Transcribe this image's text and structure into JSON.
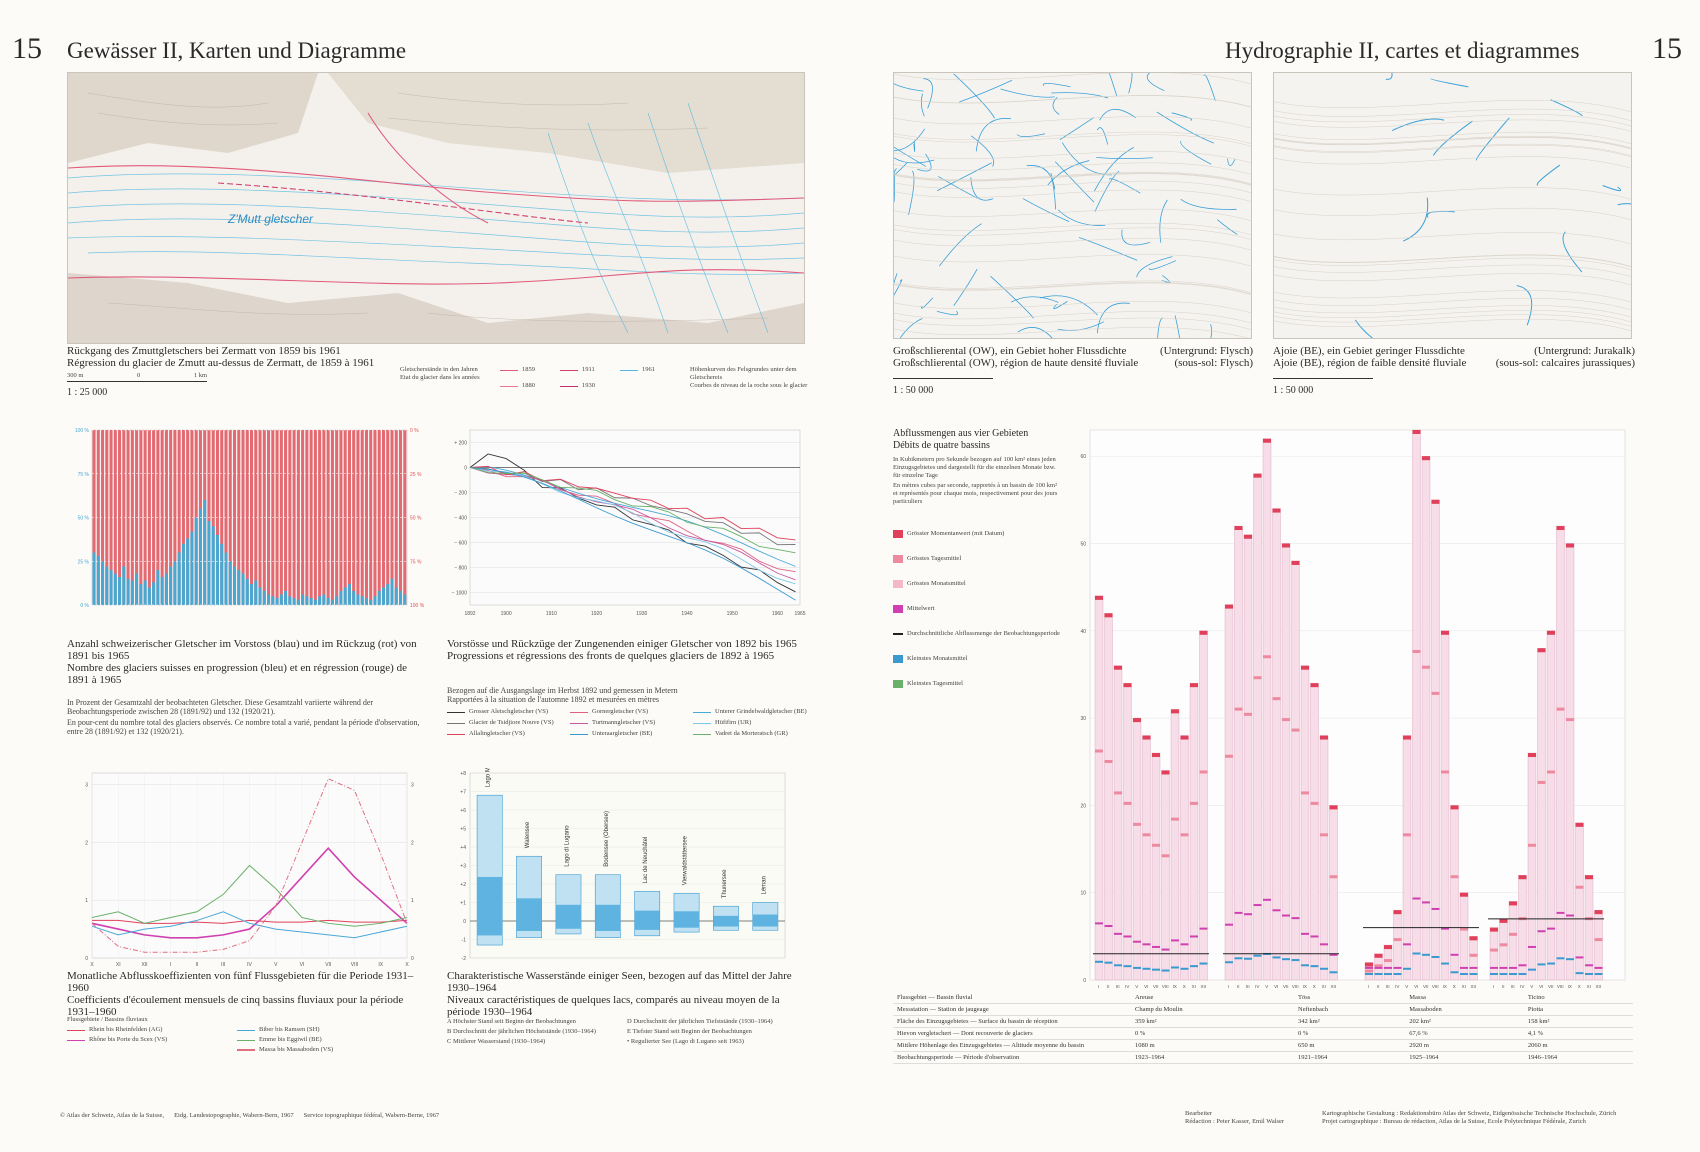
{
  "left": {
    "page_number": "15",
    "title": "Gewässer II, Karten und Diagramme",
    "zmutt": {
      "cap_de": "Rückgang des Zmuttgletschers bei Zermatt von 1859 bis 1961",
      "cap_fr": "Régression du glacier de Zmutt au-dessus de Zermatt, de 1859 à 1961",
      "scale": "1 : 25 000",
      "bar_labels": [
        "300 m",
        "0",
        "1 km"
      ],
      "map_label": "Z'Mutt gletscher",
      "legend_head_de": "Gletscherstände in den Jahren",
      "legend_head_fr": "Etat du glacier dans les années",
      "years": [
        "1859",
        "1911",
        "1961",
        "1880",
        "1930"
      ],
      "contour_de": "Höhenkurven des Felsgrundes unter dem Gletschereis",
      "contour_fr": "Courbes de niveau de la roche sous le glacier"
    },
    "glaciers_count": {
      "cap_de": "Anzahl schweizerischer Gletscher im Vorstoss (blau) und im Rückzug (rot) von 1891 bis 1965",
      "cap_fr": "Nombre des glaciers suisses en progression (bleu) et en régression (rouge) de 1891 à 1965",
      "note_de": "In Prozent der Gesamtzahl der beobachteten Gletscher. Diese Gesamtzahl variierte während der Beobachtungsperiode zwischen 28 (1891/92) und 132 (1920/21).",
      "note_fr": "En pour-cent du nombre total des glaciers observés. Ce nombre total a varié, pendant la période d'observation, entre 28 (1891/92) et 132 (1920/21)."
    },
    "fronts": {
      "cap_de": "Vorstösse und Rückzüge der Zungenenden einiger Gletscher von 1892 bis 1965",
      "cap_fr": "Progressions et régressions des fronts de quelques glaciers de 1892 à 1965",
      "note_de": "Bezogen auf die Ausgangslage im Herbst 1892 und gemessen in Metern",
      "note_fr": "Rapportées à la situation de l'automne 1892 et mesurées en mètres",
      "legend": [
        "Grosser Aletschgletscher (VS)",
        "Gornergletscher (VS)",
        "Unterer Grindelwaldgletscher (BE)",
        "Glacier de Tsidjiore Nouve (VS)",
        "Turtmanngletscher (VS)",
        "Hüfifirn (UR)",
        "Allalingletscher (VS)",
        "Unteraargletscher (BE)",
        "Vadret da Morteratsch (GR)"
      ]
    },
    "monthly": {
      "cap_de": "Monatliche Abflusskoeffizienten von fünf Flussgebieten für die Periode 1931–1960",
      "cap_fr": "Coefficients d'écoulement mensuels de cinq bassins fluviaux pour la période 1931–1960",
      "legend_head": "Flussgebiete / Bassins fluviaux",
      "legend": [
        "Rhein bis Rheinfelden (AG)",
        "Rhône bis Porte du Scex (VS)",
        "Biber bis Ramsen (SH)",
        "Emme bis Eggiwil (BE)",
        "Massa bis Massaboden (VS)"
      ]
    },
    "lakes": {
      "cap_de": "Charakteristische Wasserstände einiger Seen, bezogen auf das Mittel der Jahre 1930–1964",
      "cap_fr": "Niveaux caractéristiques de quelques lacs, comparés au niveau moyen de la période 1930–1964",
      "lakes": [
        "Lago Maggiore",
        "Walensee",
        "Lago di Lugano",
        "Bodensee (Obersee)",
        "Lac de Neuchâtel",
        "Vierwaldstättersee",
        "Thunersee",
        "Léman"
      ],
      "notes": [
        "A Höchster Stand seit Beginn der Beobachtungen",
        "B Durchschnitt der jährlichen Höchststände (1930–1964)",
        "C Mittlerer Wasserstand (1930–1964)",
        "D Durchschnitt der jährlichen Tiefststände (1930–1964)",
        "E Tiefster Stand seit Beginn der Beobachtungen",
        "• Regulierter See (Lago di Lugano seit 1963)"
      ]
    },
    "footer": [
      "© Atlas der Schweiz, Atlas de la Suisse,",
      "Eidg. Landestopographie, Wabern-Bern, 1967",
      "Service topographique fédéral, Wabern-Berne, 1967"
    ]
  },
  "right": {
    "page_number": "15",
    "title": "Hydrographie II, cartes et diagrammes",
    "map_a": {
      "cap_de": "Großschlierental (OW), ein Gebiet hoher Flussdichte",
      "cap_fr": "Großschlierental (OW), région de haute densité fluviale",
      "sub_de": "(Untergrund: Flysch)",
      "sub_fr": "(sous-sol: Flysch)",
      "scale": "1 : 50 000"
    },
    "map_b": {
      "cap_de": "Ajoie (BE), ein Gebiet geringer Flussdichte",
      "cap_fr": "Ajoie (BE), région de faible densité fluviale",
      "sub_de": "(Untergrund: Jurakalk)",
      "sub_fr": "(sous-sol: calcaires jurassiques)",
      "scale": "1 : 50 000"
    },
    "runoff": {
      "title_de": "Abflussmengen aus vier Gebieten",
      "title_fr": "Débits de quatre bassins",
      "desc_de": "In Kubikmetern pro Sekunde bezogen auf 100 km² eines jeden Einzugsgebietes und dargestellt für die einzelnen Monate bzw. für einzelne Tage",
      "desc_fr": "En mètres cubes par seconde, rapportés à un bassin de 100 km² et représentés pour chaque mois, respectivement pour des jours particuliers",
      "legend": [
        "Grösster Momentanwert (mit Datum)",
        "Grösstes Tagesmittel",
        "Grösstes Monatsmittel",
        "Mittelwert",
        "Durchschnittliche Abflussmenge der Beobachtungsperiode",
        "Kleinstes Monatsmittel",
        "Kleinstes Tagesmittel"
      ]
    },
    "basins_table": {
      "rows": [
        {
          "label": "Flussgebiet — Bassin fluvial",
          "vals": [
            "Areuse",
            "Töss",
            "Massa",
            "Ticino"
          ]
        },
        {
          "label": "Messstation — Station de jaugeage",
          "vals": [
            "Champ du Moulin",
            "Neftenbach",
            "Massaboden",
            "Piotta"
          ]
        },
        {
          "label": "Fläche des Einzugsgebietes — Surface du bassin de réception",
          "vals": [
            "359 km²",
            "342 km²",
            "202 km²",
            "158 km²"
          ]
        },
        {
          "label": "Hievon vergletschert — Dont recouverte de glaciers",
          "vals": [
            "0 %",
            "0 %",
            "67,6 %",
            "4,1 %"
          ]
        },
        {
          "label": "Mittlere Höhenlage des Einzugsgebietes — Altitude moyenne du bassin",
          "vals": [
            "1080 m",
            "650 m",
            "2920 m",
            "2060 m"
          ]
        },
        {
          "label": "Beobachtungsperiode — Période d'observation",
          "vals": [
            "1923–1964",
            "1921–1964",
            "1925–1964",
            "1946–1964"
          ]
        }
      ]
    },
    "footer_left": [
      "Bearbeiter",
      "Rédaction : Peter Kasser, Emil Walser"
    ],
    "footer_right": [
      "Kartographische Gestaltung : Redaktionsbüro Atlas der Schweiz, Eidgenössische Technische Hochschule, Zürich",
      "Projet cartographique : Bureau de rédaction, Atlas de la Suisse, Ecole Polytechnique Fédérale, Zurich"
    ]
  },
  "chart_data": [
    {
      "type": "bar",
      "title": "Anzahl schweizerischer Gletscher im Vorstoss (blau) und im Rückzug (rot)",
      "x": "1891/92–1964/65",
      "series": [
        {
          "name": "Vorstoss (blau)",
          "values": [
            30,
            28,
            25,
            22,
            20,
            18,
            16,
            22,
            15,
            14,
            18,
            12,
            14,
            10,
            13,
            20,
            16,
            18,
            22,
            25,
            30,
            35,
            38,
            42,
            50,
            55,
            60,
            48,
            45,
            40,
            35,
            30,
            25,
            22,
            20,
            18,
            15,
            12,
            14,
            10,
            8,
            6,
            5,
            4,
            6,
            8,
            5,
            4,
            3,
            6,
            5,
            4,
            3,
            5,
            6,
            4,
            3,
            5,
            8,
            10,
            12,
            8,
            6,
            5,
            4,
            3,
            5,
            8,
            10,
            12,
            15,
            10,
            8,
            6
          ]
        }
      ],
      "ylim": [
        0,
        100
      ],
      "ytick_labels": [
        "0 %",
        "25 %",
        "50 %",
        "75 %",
        "100 %"
      ]
    },
    {
      "type": "line",
      "title": "Vorstösse und Rückzüge der Zungenenden",
      "ylim": [
        -1100,
        300
      ],
      "x": [
        1892,
        1900,
        1910,
        1920,
        1930,
        1940,
        1950,
        1960,
        1965
      ]
    },
    {
      "type": "line",
      "title": "Monatliche Abflusskoeffizienten",
      "categories": [
        "X",
        "XI",
        "XII",
        "I",
        "II",
        "III",
        "IV",
        "V",
        "VI",
        "VII",
        "VIII",
        "IX",
        "X"
      ],
      "series": [
        {
          "name": "Rhein bis Rheinfelden (AG)",
          "values": [
            0.65,
            0.65,
            0.6,
            0.6,
            0.62,
            0.6,
            0.65,
            0.62,
            0.62,
            0.65,
            0.62,
            0.62,
            0.65
          ]
        },
        {
          "name": "Rhône bis Porte du Scex (VS)",
          "values": [
            0.6,
            0.5,
            0.4,
            0.35,
            0.35,
            0.4,
            0.5,
            0.9,
            1.4,
            1.9,
            1.4,
            1.0,
            0.6
          ]
        },
        {
          "name": "Biber bis Ramsen (SH)",
          "values": [
            0.55,
            0.4,
            0.5,
            0.55,
            0.65,
            0.8,
            0.6,
            0.5,
            0.45,
            0.4,
            0.35,
            0.45,
            0.55
          ]
        },
        {
          "name": "Emme bis Eggiwil (BE)",
          "values": [
            0.7,
            0.8,
            0.6,
            0.7,
            0.8,
            1.1,
            1.6,
            1.2,
            0.7,
            0.6,
            0.55,
            0.6,
            0.7
          ]
        },
        {
          "name": "Massa bis Massaboden (VS)",
          "values": [
            0.6,
            0.2,
            0.1,
            0.1,
            0.1,
            0.15,
            0.3,
            0.9,
            2.0,
            3.1,
            2.9,
            1.8,
            0.6
          ]
        }
      ],
      "ylim": [
        0,
        3.2
      ]
    }
  ]
}
